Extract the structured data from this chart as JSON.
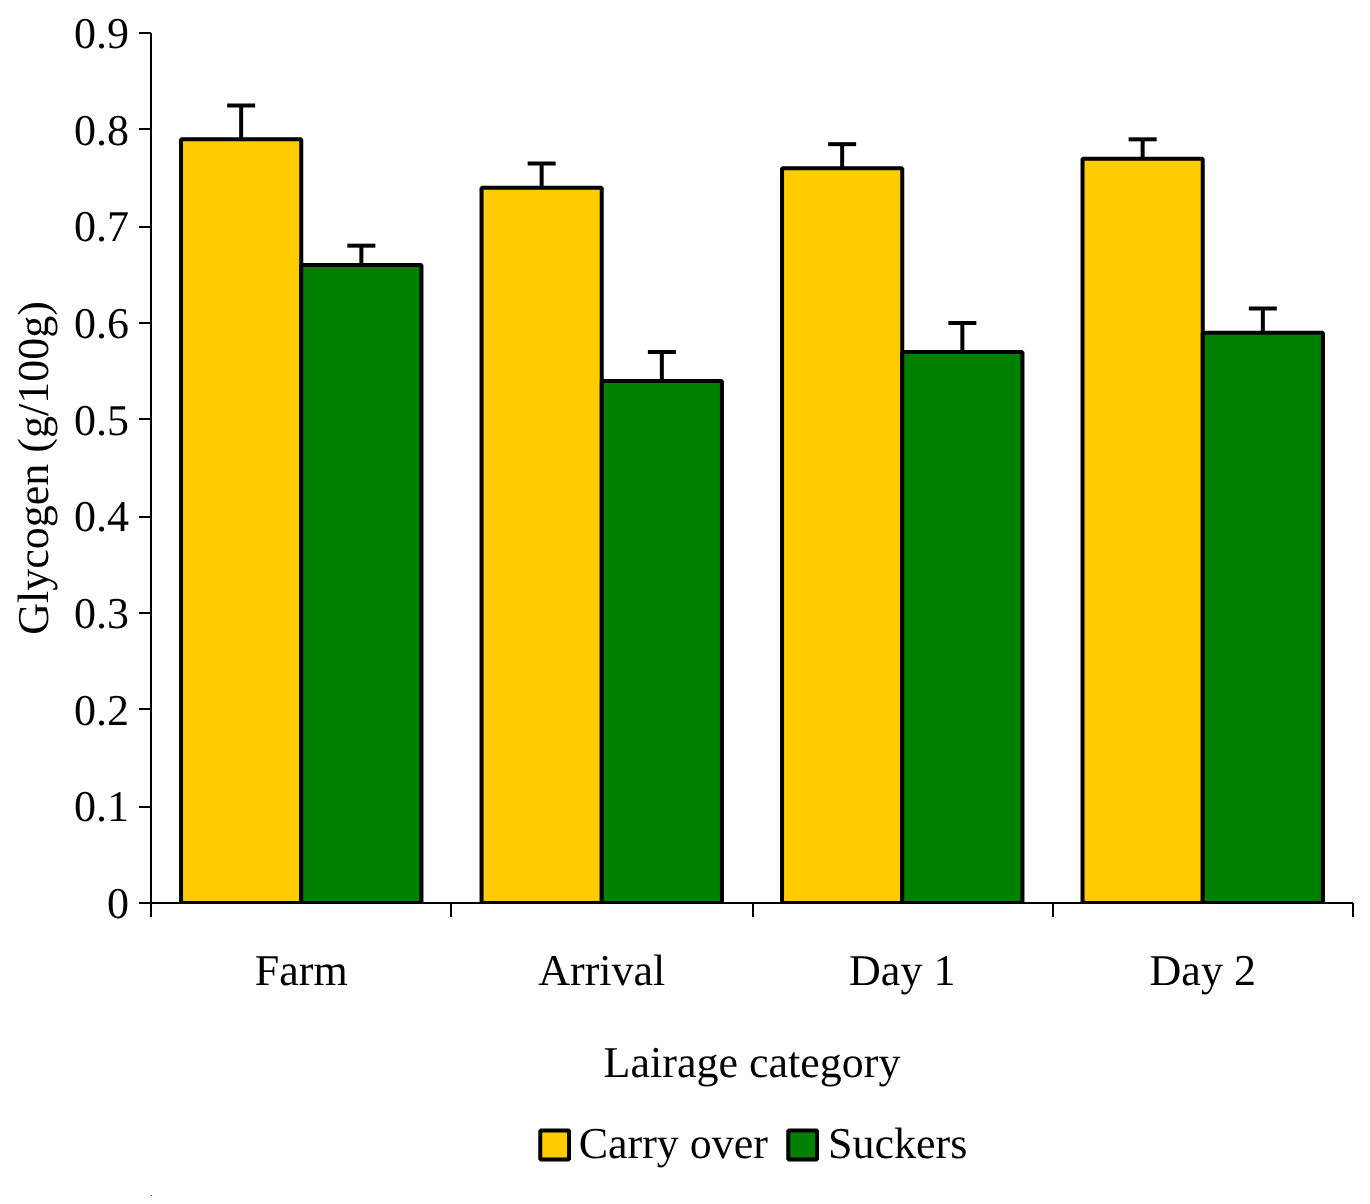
{
  "chart_data": {
    "type": "bar",
    "xlabel": "Lairage category",
    "ylabel": "Glycogen (g/100g)",
    "categories": [
      "Farm",
      "Arrival",
      "Day 1",
      "Day 2"
    ],
    "series": [
      {
        "name": "Carry over",
        "color": "#ffcc00",
        "values": [
          0.79,
          0.74,
          0.76,
          0.77
        ],
        "errors": [
          [
            0.79,
            0.825
          ],
          [
            0.74,
            0.765
          ],
          [
            0.76,
            0.785
          ],
          [
            0.77,
            0.79
          ]
        ]
      },
      {
        "name": "Suckers",
        "color": "#008000",
        "values": [
          0.66,
          0.54,
          0.57,
          0.59
        ],
        "errors": [
          [
            0.66,
            0.68
          ],
          [
            0.54,
            0.57
          ],
          [
            0.57,
            0.6
          ],
          [
            0.59,
            0.615
          ]
        ]
      }
    ],
    "ylim": [
      0,
      0.9
    ],
    "yticks": [
      0,
      {
        "value": 0.1,
        "label": "0.1"
      },
      {
        "value": 0.2,
        "label": "0.2"
      },
      {
        "value": 0.3,
        "label": "0.3"
      },
      {
        "value": 0.4,
        "label": "0.4"
      },
      {
        "value": 0.5,
        "label": "0.5"
      },
      {
        "value": 0.6,
        "label": "0.6"
      },
      {
        "value": 0.7,
        "label": "0.7"
      },
      {
        "value": 0.8,
        "label": "0.8"
      },
      {
        "value": 0.9,
        "label": "0.9"
      }
    ],
    "grid": false,
    "legend": "bottom"
  }
}
